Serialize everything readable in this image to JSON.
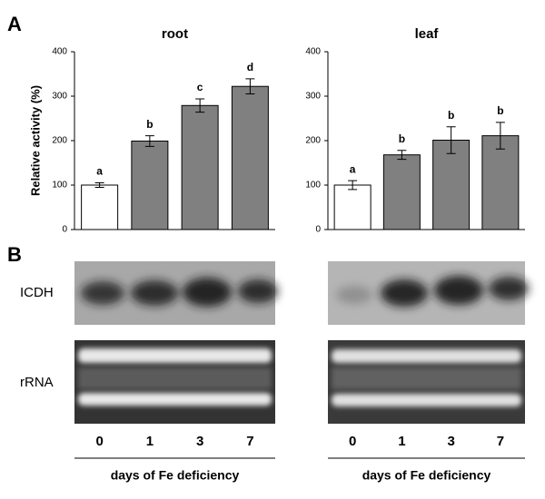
{
  "chart_data": [
    {
      "type": "bar",
      "title": "root",
      "ylabel": "Relative activity (%)",
      "categories": [
        null,
        null,
        null,
        null
      ],
      "values": [
        100,
        199,
        279,
        322
      ],
      "errors": [
        5,
        12,
        15,
        17
      ],
      "labels": [
        "a",
        "b",
        "c",
        "d"
      ],
      "colors": [
        "#ffffff",
        "#808080",
        "#808080",
        "#808080"
      ],
      "ylim": [
        0,
        400
      ],
      "yticks": [
        0,
        100,
        200,
        300,
        400
      ]
    },
    {
      "type": "bar",
      "title": "leaf",
      "categories": [
        null,
        null,
        null,
        null
      ],
      "values": [
        100,
        168,
        201,
        211
      ],
      "errors": [
        10,
        10,
        30,
        30
      ],
      "labels": [
        "a",
        "b",
        "b",
        "b"
      ],
      "colors": [
        "#ffffff",
        "#808080",
        "#808080",
        "#808080"
      ],
      "ylim": [
        0,
        400
      ],
      "yticks": [
        0,
        100,
        200,
        300,
        400
      ]
    }
  ],
  "figure": {
    "panels": [
      "A",
      "B"
    ],
    "blot_rows": [
      "ICDH",
      "rRNA"
    ],
    "blots": [
      {
        "lanes": [
          "0",
          "1",
          "3",
          "7"
        ],
        "xlabel": "days of Fe deficiency"
      },
      {
        "lanes": [
          "0",
          "1",
          "3",
          "7"
        ],
        "xlabel": "days of Fe deficiency"
      }
    ]
  }
}
